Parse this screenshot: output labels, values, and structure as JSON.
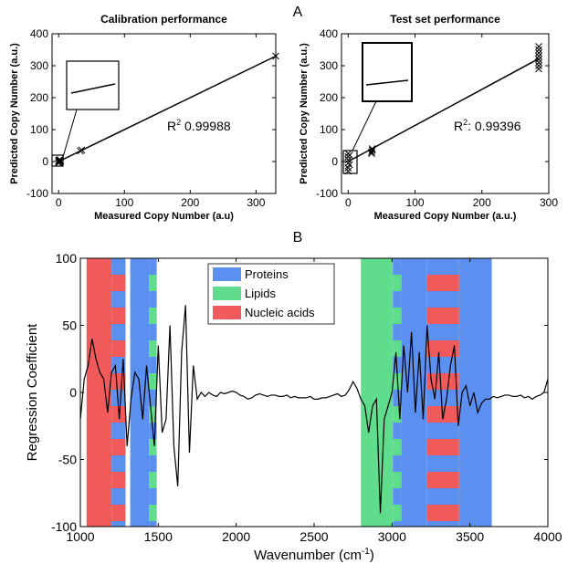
{
  "chart_data": [
    {
      "type": "scatter",
      "panel_label": "A",
      "title": "Calibration performance",
      "xlabel": "Measured Copy Number (a.u)",
      "ylabel": "Predicted Copy Number (a.u.)",
      "xlim": [
        -10,
        330
      ],
      "ylim": [
        -100,
        400
      ],
      "xticks": [
        0,
        100,
        200,
        300
      ],
      "yticks": [
        -100,
        0,
        100,
        200,
        300,
        400
      ],
      "series": [
        {
          "color": "#000000",
          "x": [
            0,
            0,
            0,
            1,
            1,
            2,
            2,
            3,
            33,
            35,
            330
          ],
          "y": [
            -5,
            0,
            3,
            -2,
            4,
            1,
            6,
            2,
            33,
            36,
            330
          ]
        }
      ],
      "fit": {
        "x": [
          0,
          330
        ],
        "y": [
          0,
          330
        ]
      },
      "annotation": {
        "r": "R",
        "sup": "2",
        "text": " 0.99988"
      }
    },
    {
      "type": "scatter",
      "title": "Test set performance",
      "xlabel": "Measured Copy Number (a.u.)",
      "ylabel": "Predicted Copy Number (a.u.)",
      "xlim": [
        -10,
        300
      ],
      "ylim": [
        -100,
        400
      ],
      "xticks": [
        0,
        100,
        200,
        300
      ],
      "yticks": [
        -100,
        0,
        100,
        200,
        300,
        400
      ],
      "series": [
        {
          "color": "#000000",
          "x": [
            0,
            0,
            0,
            0,
            0,
            0,
            2,
            2,
            35,
            35,
            36,
            36,
            285,
            285,
            285,
            285,
            285,
            285,
            285,
            285
          ],
          "y": [
            -30,
            -20,
            -5,
            5,
            15,
            25,
            -10,
            20,
            25,
            30,
            35,
            40,
            290,
            300,
            310,
            320,
            330,
            340,
            350,
            360
          ]
        }
      ],
      "fit": {
        "x": [
          0,
          285
        ],
        "y": [
          0,
          322
        ]
      },
      "annotation": {
        "r": "R",
        "sup": "2",
        "text": ": 0.99396"
      }
    },
    {
      "type": "line",
      "panel_label": "B",
      "ylabel": "Regression Coefficient",
      "xlabel": {
        "text": "Wavenumber (cm",
        "sup": "-1",
        "tail": ")"
      },
      "xlim": [
        1000,
        4000
      ],
      "ylim": [
        -100,
        100
      ],
      "xticks": [
        1000,
        1500,
        2000,
        2500,
        3000,
        3500,
        4000
      ],
      "yticks": [
        -100,
        -50,
        0,
        50,
        100
      ],
      "line_color": "#000000",
      "regions": [
        {
          "name": "Proteins",
          "color": "#5b8ff0",
          "ranges": [
            [
              1200,
              1290
            ],
            [
              1320,
              1440
            ],
            [
              1440,
              1490
            ],
            [
              3005,
              3060
            ],
            [
              3060,
              3225
            ],
            [
              3225,
              3430
            ],
            [
              3430,
              3640
            ]
          ]
        },
        {
          "name": "Lipids",
          "color": "#5fdc8c",
          "ranges": [
            [
              1440,
              1490
            ],
            [
              2800,
              3005
            ],
            [
              3005,
              3060
            ]
          ]
        },
        {
          "name": "Nucleic acids",
          "color": "#f05a5a",
          "ranges": [
            [
              1040,
              1200
            ],
            [
              1200,
              1290
            ],
            [
              3225,
              3430
            ]
          ]
        }
      ],
      "x": [
        1000,
        1025,
        1050,
        1075,
        1100,
        1125,
        1150,
        1175,
        1200,
        1225,
        1250,
        1275,
        1300,
        1325,
        1350,
        1375,
        1400,
        1425,
        1450,
        1475,
        1500,
        1525,
        1550,
        1575,
        1600,
        1625,
        1650,
        1675,
        1700,
        1725,
        1750,
        1775,
        1800,
        1825,
        1850,
        1875,
        1900,
        1925,
        1950,
        1975,
        2000,
        2025,
        2050,
        2075,
        2100,
        2125,
        2150,
        2175,
        2200,
        2225,
        2250,
        2275,
        2300,
        2325,
        2350,
        2375,
        2400,
        2425,
        2450,
        2475,
        2500,
        2525,
        2550,
        2575,
        2600,
        2625,
        2650,
        2675,
        2700,
        2725,
        2750,
        2775,
        2800,
        2825,
        2850,
        2875,
        2900,
        2925,
        2950,
        2975,
        3000,
        3025,
        3050,
        3075,
        3100,
        3125,
        3150,
        3175,
        3200,
        3225,
        3250,
        3275,
        3300,
        3325,
        3350,
        3375,
        3400,
        3425,
        3450,
        3475,
        3500,
        3525,
        3550,
        3575,
        3600,
        3625,
        3650,
        3675,
        3700,
        3725,
        3750,
        3775,
        3800,
        3825,
        3850,
        3875,
        3900,
        3925,
        3950,
        3975,
        4000
      ],
      "values": [
        -20,
        10,
        20,
        40,
        25,
        15,
        10,
        -15,
        15,
        20,
        -20,
        25,
        -40,
        -5,
        15,
        10,
        -20,
        20,
        -10,
        -40,
        35,
        -30,
        -20,
        50,
        -40,
        -70,
        30,
        65,
        -45,
        20,
        -5,
        0,
        -3,
        0,
        -2,
        -3,
        0,
        -1,
        0,
        1,
        0,
        -2,
        -3,
        -5,
        -4,
        -2,
        -1,
        -2,
        -3,
        -2,
        -2,
        -3,
        -3,
        -2,
        -4,
        -3,
        -4,
        -4,
        -4,
        -3,
        -5,
        -5,
        -4,
        -4,
        -3,
        -2,
        -1,
        -3,
        -2,
        2,
        8,
        3,
        -5,
        -10,
        -30,
        -10,
        -5,
        -90,
        -20,
        -10,
        0,
        30,
        -20,
        35,
        0,
        45,
        -15,
        30,
        -20,
        50,
        10,
        -5,
        30,
        -20,
        -5,
        20,
        35,
        -25,
        0,
        5,
        -10,
        0,
        -15,
        -8,
        -5,
        -5,
        -3,
        -4,
        -3,
        -2,
        -2,
        -3,
        -3,
        -2,
        -4,
        -3,
        -5,
        -3,
        -2,
        0,
        10
      ]
    }
  ]
}
